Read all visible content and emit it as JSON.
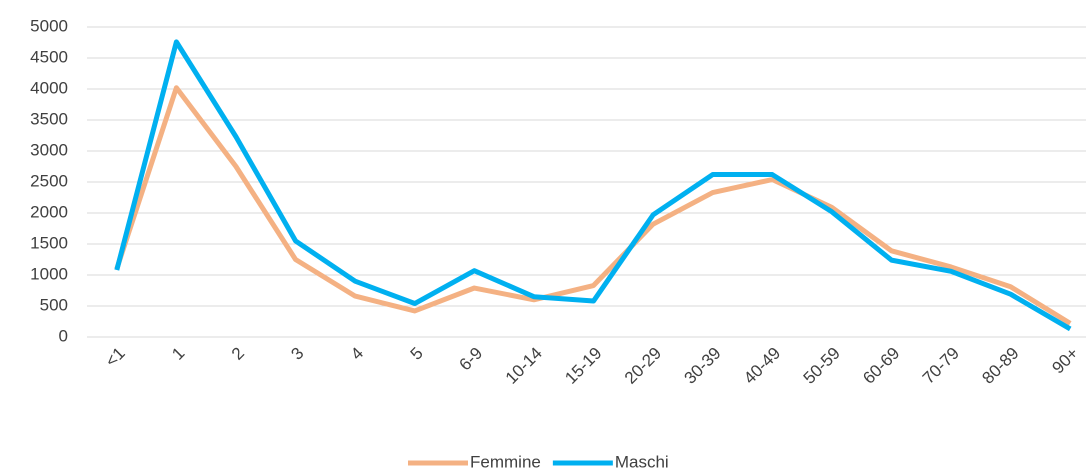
{
  "chart_data": {
    "type": "line",
    "categories": [
      "<1",
      "1",
      "2",
      "3",
      "4",
      "5",
      "6-9",
      "10-14",
      "15-19",
      "20-29",
      "30-39",
      "40-49",
      "50-59",
      "60-69",
      "70-79",
      "80-89",
      "90+"
    ],
    "series": [
      {
        "name": "Femmine",
        "color": "#f4b183",
        "values": [
          1100,
          4020,
          2750,
          1250,
          660,
          420,
          790,
          600,
          830,
          1820,
          2330,
          2540,
          2090,
          1390,
          1130,
          810,
          220
        ]
      },
      {
        "name": "Maschi",
        "color": "#00b0f0",
        "values": [
          1080,
          4760,
          3230,
          1550,
          900,
          540,
          1070,
          650,
          580,
          1970,
          2620,
          2620,
          2020,
          1240,
          1060,
          690,
          130
        ]
      }
    ],
    "ylim": [
      0,
      5000
    ],
    "yticks": [
      0,
      500,
      1000,
      1500,
      2000,
      2500,
      3000,
      3500,
      4000,
      4500,
      5000
    ],
    "grid": true,
    "legend": "bottom"
  }
}
